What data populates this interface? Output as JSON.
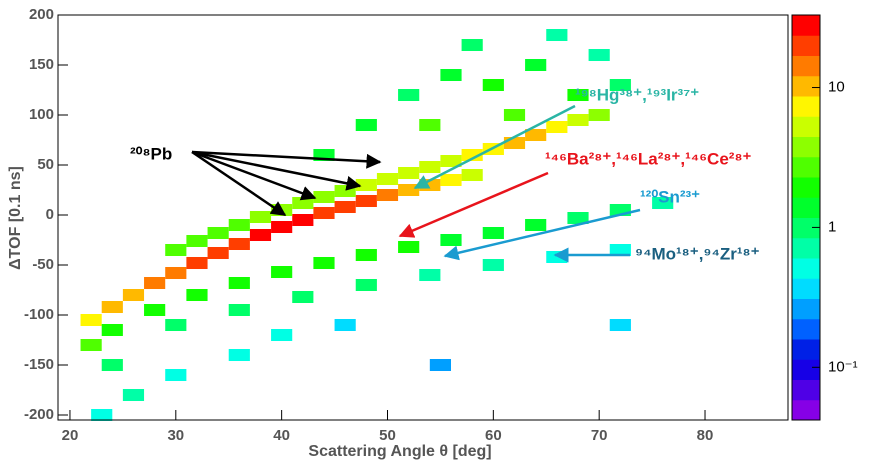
{
  "chart_data": {
    "type": "heatmap",
    "x_label": "Scattering Angle θ [deg]",
    "y_label": "ΔTOF [0.1 ns]",
    "xlim": [
      18.87,
      87.84
    ],
    "ylim": [
      -205,
      200
    ],
    "xticks": [
      20,
      30,
      40,
      50,
      60,
      70,
      80
    ],
    "yticks": [
      -200,
      -150,
      -100,
      -50,
      0,
      50,
      100,
      150,
      200
    ],
    "zlim": [
      0.042,
      33
    ],
    "zlog": true,
    "zticks": [
      {
        "value": 0.1,
        "label": "10⁻¹"
      },
      1,
      10
    ],
    "cell_size": [
      2,
      12
    ],
    "x": [
      22,
      24,
      26,
      28,
      30,
      32,
      34,
      36,
      38,
      40,
      42,
      44,
      46,
      48,
      50,
      52,
      54,
      56,
      58,
      30,
      32,
      34,
      36,
      38,
      40,
      42,
      44,
      46,
      48,
      50,
      52,
      54,
      56,
      58,
      60,
      62,
      64,
      66,
      68,
      70,
      24,
      28,
      32,
      36,
      40,
      44,
      48,
      52,
      56,
      60,
      64,
      68,
      72,
      76,
      30,
      36,
      42,
      48,
      54,
      60,
      66,
      72,
      52,
      56,
      60,
      64,
      68,
      58,
      66,
      72,
      48,
      44,
      62,
      54,
      70,
      24,
      26,
      30,
      36,
      22,
      23,
      46,
      72,
      55,
      40
    ],
    "y": [
      -105,
      -92,
      -80,
      -68,
      -58,
      -48,
      -38,
      -29,
      -20,
      -12,
      -5,
      2,
      8,
      14,
      20,
      25,
      30,
      35,
      40,
      -35,
      -26,
      -18,
      -10,
      -2,
      5,
      12,
      18,
      24,
      30,
      36,
      42,
      48,
      54,
      60,
      66,
      72,
      80,
      88,
      95,
      100,
      -115,
      -95,
      -80,
      -68,
      -57,
      -48,
      -40,
      -32,
      -25,
      -18,
      -10,
      -3,
      5,
      12,
      -110,
      -95,
      -82,
      -70,
      -60,
      -50,
      -42,
      -35,
      120,
      140,
      130,
      150,
      120,
      170,
      180,
      130,
      90,
      60,
      100,
      90,
      160,
      -150,
      -180,
      -160,
      -140,
      -130,
      -200,
      -110,
      -110,
      -150,
      -120
    ],
    "values": [
      8,
      10,
      12,
      14,
      16,
      18,
      20,
      22,
      24,
      25,
      24,
      22,
      20,
      18,
      15,
      12,
      10,
      8,
      6,
      3,
      3,
      3,
      3,
      4,
      4,
      4,
      4,
      4,
      5,
      5,
      5,
      5,
      6,
      7,
      8,
      9,
      9,
      8,
      6,
      4,
      2,
      2,
      2,
      2,
      2,
      2,
      2,
      2,
      1.5,
      1.5,
      1.5,
      1,
      1,
      0.8,
      1,
      1,
      1,
      1,
      0.8,
      0.8,
      0.6,
      0.5,
      1,
      1.5,
      2,
      1.5,
      2,
      1,
      0.8,
      1,
      1.5,
      1.5,
      3,
      3,
      0.8,
      1,
      0.8,
      0.6,
      0.5,
      3,
      0.5,
      0.4,
      0.4,
      0.3,
      0.6
    ],
    "annotations": [
      "²⁰⁸Pb",
      "¹⁹⁸Hg³⁸⁺,¹⁹³Ir³⁷⁺",
      "¹⁴⁶Ba²⁸⁺,¹⁴⁶La²⁸⁺,¹⁴⁶Ce²⁸⁺",
      "¹²⁰Sn²³⁺",
      "⁹⁴Mo¹⁸⁺,⁹⁴Zr¹⁸⁺"
    ]
  }
}
